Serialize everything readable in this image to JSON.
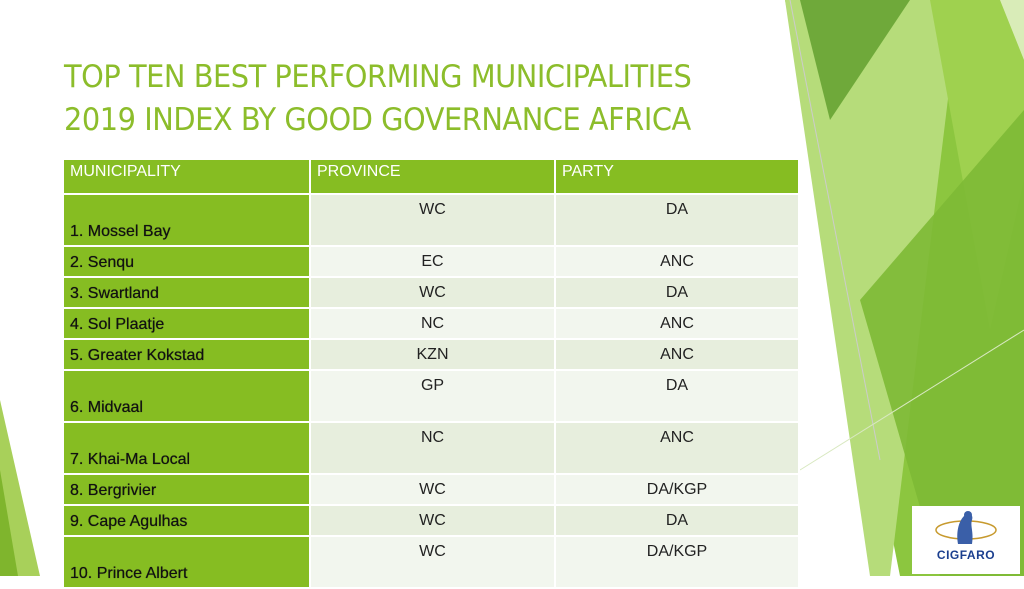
{
  "title": {
    "line1": "TOP TEN BEST PERFORMING MUNICIPALITIES",
    "line2": "2019 INDEX BY GOOD GOVERNANCE AFRICA"
  },
  "table": {
    "headers": [
      "MUNICIPALITY",
      "PROVINCE",
      "PARTY"
    ],
    "rows": [
      {
        "municipality": "1. Mossel Bay",
        "province": "WC",
        "party": "DA"
      },
      {
        "municipality": "2. Senqu",
        "province": "EC",
        "party": "ANC"
      },
      {
        "municipality": "3. Swartland",
        "province": "WC",
        "party": "DA"
      },
      {
        "municipality": "4. Sol Plaatje",
        "province": "NC",
        "party": "ANC"
      },
      {
        "municipality": "5. Greater Kokstad",
        "province": "KZN",
        "party": "ANC"
      },
      {
        "municipality": "6. Midvaal",
        "province": "GP",
        "party": "DA"
      },
      {
        "municipality": "7. Khai-Ma Local",
        "province": "NC",
        "party": "ANC"
      },
      {
        "municipality": "8. Bergrivier",
        "province": "WC",
        "party": "DA/KGP"
      },
      {
        "municipality": "9. Cape Agulhas",
        "province": "WC",
        "party": "DA"
      },
      {
        "municipality": "10. Prince Albert",
        "province": "WC",
        "party": "DA/KGP"
      }
    ]
  },
  "logo": {
    "text": "CIGFARO"
  },
  "colors": {
    "accent": "#86bd22",
    "title": "#8cbd2b",
    "row_odd": "#e7eedd",
    "row_even": "#f2f6ee"
  }
}
